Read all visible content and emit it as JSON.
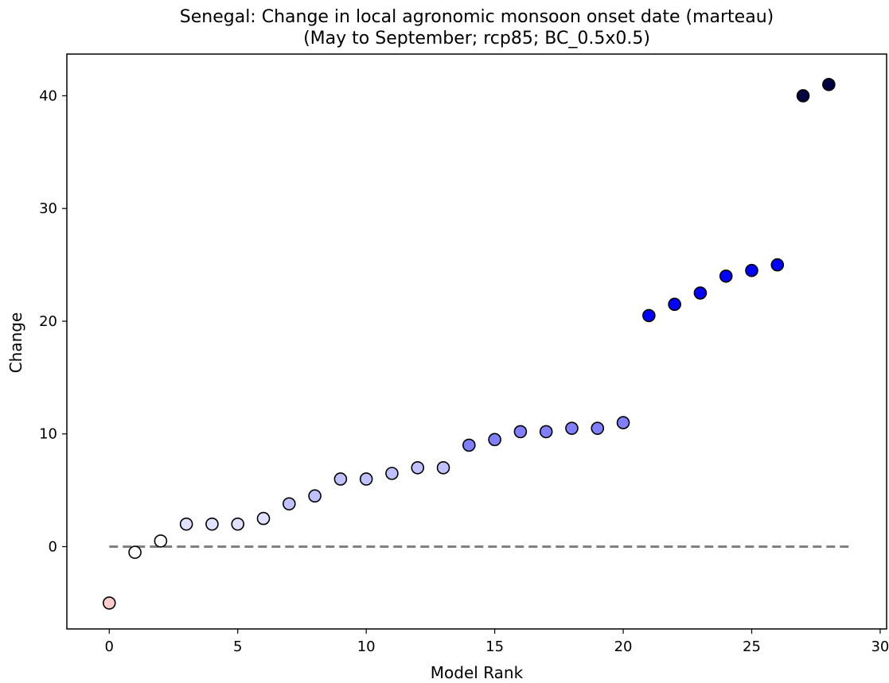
{
  "chart_data": {
    "type": "scatter",
    "title": "Senegal: Change in local agronomic monsoon onset date (marteau)",
    "subtitle": "(May to September; rcp85; BC_0.5x0.5)",
    "xlabel": "Model Rank",
    "ylabel": "Change",
    "xlim": [
      -1.65,
      30.25
    ],
    "ylim": [
      -7.3,
      43.7
    ],
    "x_ticks": [
      0,
      5,
      10,
      15,
      20,
      25,
      30
    ],
    "y_ticks": [
      0,
      10,
      20,
      30,
      40
    ],
    "grid": false,
    "legend": "none",
    "reference_line": {
      "y": 0,
      "x_range": [
        0,
        28.8
      ],
      "style": "dashed",
      "color": "#808080"
    },
    "points": [
      {
        "x": 0,
        "y": -5.0,
        "color": "#ffcccc"
      },
      {
        "x": 1,
        "y": -0.5,
        "color": "#ffffff"
      },
      {
        "x": 2,
        "y": 0.5,
        "color": "#ffffff"
      },
      {
        "x": 3,
        "y": 2.0,
        "color": "#e0e0ff"
      },
      {
        "x": 4,
        "y": 2.0,
        "color": "#e0e0ff"
      },
      {
        "x": 5,
        "y": 2.0,
        "color": "#e0e0ff"
      },
      {
        "x": 6,
        "y": 2.5,
        "color": "#e0e0ff"
      },
      {
        "x": 7,
        "y": 3.8,
        "color": "#c0c0ff"
      },
      {
        "x": 8,
        "y": 4.5,
        "color": "#c0c0ff"
      },
      {
        "x": 9,
        "y": 6.0,
        "color": "#c0c0ff"
      },
      {
        "x": 10,
        "y": 6.0,
        "color": "#c0c0ff"
      },
      {
        "x": 11,
        "y": 6.5,
        "color": "#c0c0ff"
      },
      {
        "x": 12,
        "y": 7.0,
        "color": "#c0c0ff"
      },
      {
        "x": 13,
        "y": 7.0,
        "color": "#c0c0ff"
      },
      {
        "x": 14,
        "y": 9.0,
        "color": "#8080ff"
      },
      {
        "x": 15,
        "y": 9.5,
        "color": "#8080ff"
      },
      {
        "x": 16,
        "y": 10.2,
        "color": "#8080ff"
      },
      {
        "x": 17,
        "y": 10.2,
        "color": "#8080ff"
      },
      {
        "x": 18,
        "y": 10.5,
        "color": "#8080ff"
      },
      {
        "x": 19,
        "y": 10.5,
        "color": "#8080ff"
      },
      {
        "x": 20,
        "y": 11.0,
        "color": "#8080ff"
      },
      {
        "x": 21,
        "y": 20.5,
        "color": "#0000ff"
      },
      {
        "x": 22,
        "y": 21.5,
        "color": "#0000ff"
      },
      {
        "x": 23,
        "y": 22.5,
        "color": "#0000ff"
      },
      {
        "x": 24,
        "y": 24.0,
        "color": "#0000ff"
      },
      {
        "x": 25,
        "y": 24.5,
        "color": "#0000ff"
      },
      {
        "x": 26,
        "y": 25.0,
        "color": "#0000ff"
      },
      {
        "x": 27,
        "y": 40.0,
        "color": "#000040"
      },
      {
        "x": 28,
        "y": 41.0,
        "color": "#000040"
      }
    ]
  }
}
